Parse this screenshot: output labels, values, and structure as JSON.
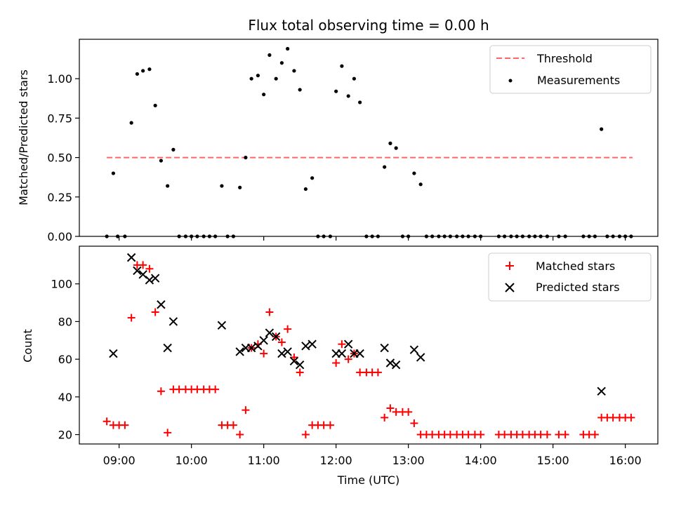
{
  "chart_data": [
    {
      "type": "scatter",
      "title": "Flux total observing time = 0.00 h",
      "xlabel": "",
      "ylabel": "Matched/Predicted stars",
      "x_unit": "hours (UTC)",
      "xlim": [
        8.45,
        16.45
      ],
      "ylim": [
        0,
        1.25
      ],
      "yticks": [
        0.0,
        0.25,
        0.5,
        0.75,
        1.0
      ],
      "ytick_labels": [
        "0.00",
        "0.25",
        "0.50",
        "0.75",
        "1.00"
      ],
      "threshold": {
        "name": "Threshold",
        "value": 0.5,
        "x_range": [
          8.83,
          16.1
        ],
        "color": "#ff6666"
      },
      "legend_position": "top-right",
      "series": [
        {
          "name": "Measurements",
          "color": "#000000",
          "points": [
            [
              8.83,
              0.0
            ],
            [
              8.92,
              0.4
            ],
            [
              8.98,
              0.0
            ],
            [
              9.08,
              0.0
            ],
            [
              9.17,
              0.72
            ],
            [
              9.25,
              1.03
            ],
            [
              9.33,
              1.05
            ],
            [
              9.42,
              1.06
            ],
            [
              9.5,
              0.83
            ],
            [
              9.58,
              0.48
            ],
            [
              9.67,
              0.32
            ],
            [
              9.75,
              0.55
            ],
            [
              9.83,
              0.0
            ],
            [
              9.92,
              0.0
            ],
            [
              10.0,
              0.0
            ],
            [
              10.08,
              0.0
            ],
            [
              10.17,
              0.0
            ],
            [
              10.25,
              0.0
            ],
            [
              10.33,
              0.0
            ],
            [
              10.42,
              0.32
            ],
            [
              10.5,
              0.0
            ],
            [
              10.58,
              0.0
            ],
            [
              10.67,
              0.31
            ],
            [
              10.75,
              0.5
            ],
            [
              10.83,
              1.0
            ],
            [
              10.92,
              1.02
            ],
            [
              11.0,
              0.9
            ],
            [
              11.08,
              1.15
            ],
            [
              11.17,
              1.0
            ],
            [
              11.25,
              1.1
            ],
            [
              11.33,
              1.19
            ],
            [
              11.42,
              1.05
            ],
            [
              11.5,
              0.93
            ],
            [
              11.58,
              0.3
            ],
            [
              11.67,
              0.37
            ],
            [
              11.75,
              0.0
            ],
            [
              11.83,
              0.0
            ],
            [
              11.92,
              0.0
            ],
            [
              12.0,
              0.92
            ],
            [
              12.08,
              1.08
            ],
            [
              12.17,
              0.89
            ],
            [
              12.25,
              1.0
            ],
            [
              12.33,
              0.85
            ],
            [
              12.42,
              0.0
            ],
            [
              12.5,
              0.0
            ],
            [
              12.58,
              0.0
            ],
            [
              12.67,
              0.44
            ],
            [
              12.75,
              0.59
            ],
            [
              12.83,
              0.56
            ],
            [
              12.92,
              0.0
            ],
            [
              13.0,
              0.0
            ],
            [
              13.08,
              0.4
            ],
            [
              13.17,
              0.33
            ],
            [
              13.25,
              0.0
            ],
            [
              13.33,
              0.0
            ],
            [
              13.42,
              0.0
            ],
            [
              13.5,
              0.0
            ],
            [
              13.58,
              0.0
            ],
            [
              13.67,
              0.0
            ],
            [
              13.75,
              0.0
            ],
            [
              13.83,
              0.0
            ],
            [
              13.92,
              0.0
            ],
            [
              14.0,
              0.0
            ],
            [
              14.25,
              0.0
            ],
            [
              14.33,
              0.0
            ],
            [
              14.42,
              0.0
            ],
            [
              14.5,
              0.0
            ],
            [
              14.58,
              0.0
            ],
            [
              14.67,
              0.0
            ],
            [
              14.75,
              0.0
            ],
            [
              14.83,
              0.0
            ],
            [
              14.92,
              0.0
            ],
            [
              15.08,
              0.0
            ],
            [
              15.17,
              0.0
            ],
            [
              15.42,
              0.0
            ],
            [
              15.5,
              0.0
            ],
            [
              15.58,
              0.0
            ],
            [
              15.67,
              0.68
            ],
            [
              15.75,
              0.0
            ],
            [
              15.83,
              0.0
            ],
            [
              15.92,
              0.0
            ],
            [
              16.0,
              0.0
            ],
            [
              16.08,
              0.0
            ]
          ]
        }
      ]
    },
    {
      "type": "scatter",
      "title": "",
      "xlabel": "Time (UTC)",
      "ylabel": "Count",
      "x_unit": "hours (UTC)",
      "xlim": [
        8.45,
        16.45
      ],
      "ylim": [
        15,
        120
      ],
      "xticks": [
        9,
        10,
        11,
        12,
        13,
        14,
        15,
        16
      ],
      "xtick_labels": [
        "09:00",
        "10:00",
        "11:00",
        "12:00",
        "13:00",
        "14:00",
        "15:00",
        "16:00"
      ],
      "yticks": [
        20,
        40,
        60,
        80,
        100
      ],
      "ytick_labels": [
        "20",
        "40",
        "60",
        "80",
        "100"
      ],
      "legend_position": "top-right",
      "series": [
        {
          "name": "Matched stars",
          "color": "#ff0000",
          "marker": "plus",
          "points": [
            [
              8.83,
              27
            ],
            [
              8.92,
              25
            ],
            [
              9.0,
              25
            ],
            [
              9.08,
              25
            ],
            [
              9.17,
              82
            ],
            [
              9.25,
              110
            ],
            [
              9.33,
              110
            ],
            [
              9.42,
              108
            ],
            [
              9.5,
              85
            ],
            [
              9.58,
              43
            ],
            [
              9.67,
              21
            ],
            [
              9.75,
              44
            ],
            [
              9.83,
              44
            ],
            [
              9.92,
              44
            ],
            [
              10.0,
              44
            ],
            [
              10.08,
              44
            ],
            [
              10.17,
              44
            ],
            [
              10.25,
              44
            ],
            [
              10.33,
              44
            ],
            [
              10.42,
              25
            ],
            [
              10.5,
              25
            ],
            [
              10.58,
              25
            ],
            [
              10.67,
              20
            ],
            [
              10.75,
              33
            ],
            [
              10.83,
              66
            ],
            [
              10.92,
              68
            ],
            [
              11.0,
              63
            ],
            [
              11.08,
              85
            ],
            [
              11.17,
              72
            ],
            [
              11.25,
              69
            ],
            [
              11.33,
              76
            ],
            [
              11.42,
              61
            ],
            [
              11.5,
              53
            ],
            [
              11.58,
              20
            ],
            [
              11.67,
              25
            ],
            [
              11.75,
              25
            ],
            [
              11.83,
              25
            ],
            [
              11.92,
              25
            ],
            [
              12.0,
              58
            ],
            [
              12.08,
              68
            ],
            [
              12.17,
              60
            ],
            [
              12.25,
              63
            ],
            [
              12.33,
              53
            ],
            [
              12.42,
              53
            ],
            [
              12.5,
              53
            ],
            [
              12.58,
              53
            ],
            [
              12.67,
              29
            ],
            [
              12.75,
              34
            ],
            [
              12.83,
              32
            ],
            [
              12.92,
              32
            ],
            [
              13.0,
              32
            ],
            [
              13.08,
              26
            ],
            [
              13.17,
              20
            ],
            [
              13.25,
              20
            ],
            [
              13.33,
              20
            ],
            [
              13.42,
              20
            ],
            [
              13.5,
              20
            ],
            [
              13.58,
              20
            ],
            [
              13.67,
              20
            ],
            [
              13.75,
              20
            ],
            [
              13.83,
              20
            ],
            [
              13.92,
              20
            ],
            [
              14.0,
              20
            ],
            [
              14.25,
              20
            ],
            [
              14.33,
              20
            ],
            [
              14.42,
              20
            ],
            [
              14.5,
              20
            ],
            [
              14.58,
              20
            ],
            [
              14.67,
              20
            ],
            [
              14.75,
              20
            ],
            [
              14.83,
              20
            ],
            [
              14.92,
              20
            ],
            [
              15.08,
              20
            ],
            [
              15.17,
              20
            ],
            [
              15.42,
              20
            ],
            [
              15.5,
              20
            ],
            [
              15.58,
              20
            ],
            [
              15.67,
              29
            ],
            [
              15.75,
              29
            ],
            [
              15.83,
              29
            ],
            [
              15.92,
              29
            ],
            [
              16.0,
              29
            ],
            [
              16.08,
              29
            ]
          ]
        },
        {
          "name": "Predicted stars",
          "color": "#000000",
          "marker": "x",
          "points": [
            [
              8.92,
              63
            ],
            [
              9.17,
              114
            ],
            [
              9.25,
              107
            ],
            [
              9.33,
              105
            ],
            [
              9.42,
              102
            ],
            [
              9.5,
              103
            ],
            [
              9.58,
              89
            ],
            [
              9.67,
              66
            ],
            [
              9.75,
              80
            ],
            [
              10.42,
              78
            ],
            [
              10.67,
              64
            ],
            [
              10.75,
              66
            ],
            [
              10.83,
              66
            ],
            [
              10.92,
              67
            ],
            [
              11.0,
              70
            ],
            [
              11.08,
              74
            ],
            [
              11.17,
              72
            ],
            [
              11.25,
              63
            ],
            [
              11.33,
              64
            ],
            [
              11.42,
              59
            ],
            [
              11.5,
              57
            ],
            [
              11.58,
              67
            ],
            [
              11.67,
              68
            ],
            [
              12.0,
              63
            ],
            [
              12.08,
              63
            ],
            [
              12.17,
              68
            ],
            [
              12.25,
              63
            ],
            [
              12.33,
              63
            ],
            [
              12.67,
              66
            ],
            [
              12.75,
              58
            ],
            [
              12.83,
              57
            ],
            [
              13.08,
              65
            ],
            [
              13.17,
              61
            ],
            [
              15.67,
              43
            ]
          ]
        }
      ]
    }
  ]
}
